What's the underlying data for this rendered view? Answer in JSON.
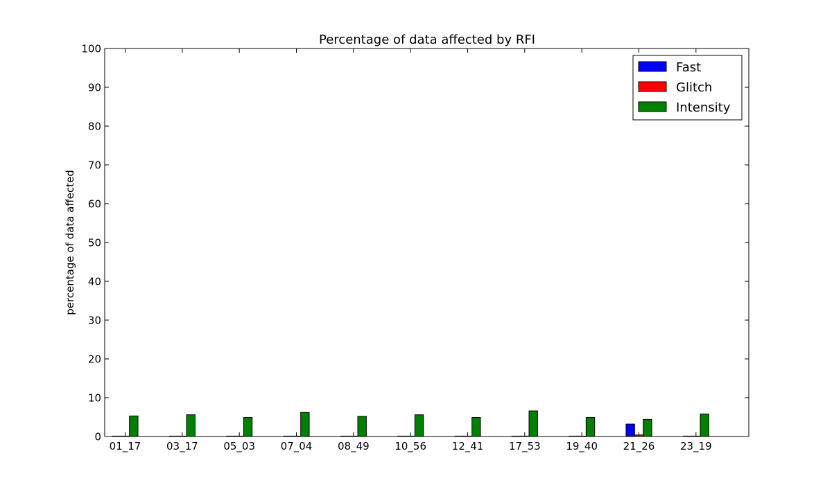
{
  "chart_data": {
    "type": "bar",
    "title": "Percentage of data affected by RFI",
    "xlabel": "",
    "ylabel": "percentage of data affected",
    "ylim": [
      0,
      100
    ],
    "yticks": [
      0,
      10,
      20,
      30,
      40,
      50,
      60,
      70,
      80,
      90,
      100
    ],
    "grid": false,
    "legend_position": "top-right",
    "categories": [
      "01_17",
      "03_17",
      "05_03",
      "07_04",
      "08_49",
      "10_56",
      "12_41",
      "17_53",
      "19_40",
      "21_26",
      "23_19"
    ],
    "series": [
      {
        "name": "Fast",
        "color": "#0000ff",
        "values": [
          0.1,
          0.1,
          0.1,
          0.1,
          0.1,
          0.1,
          0.1,
          0.1,
          0.1,
          3.2,
          0.1
        ]
      },
      {
        "name": "Glitch",
        "color": "#ff0000",
        "values": [
          0.0,
          0.0,
          0.0,
          0.0,
          0.0,
          0.0,
          0.0,
          0.0,
          0.0,
          0.4,
          0.0
        ]
      },
      {
        "name": "Intensity",
        "color": "#008000",
        "values": [
          5.3,
          5.6,
          4.9,
          6.2,
          5.2,
          5.6,
          4.9,
          6.6,
          4.9,
          4.4,
          5.8
        ]
      }
    ]
  }
}
